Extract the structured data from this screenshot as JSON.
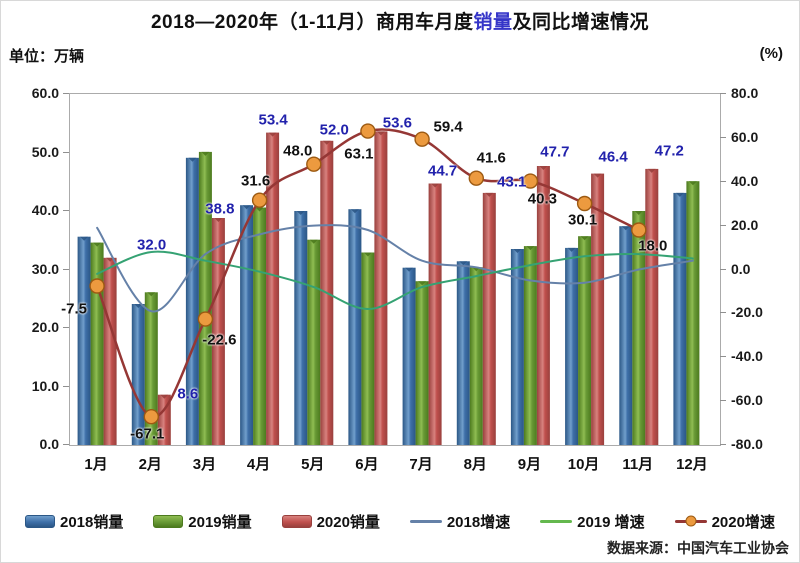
{
  "title": {
    "prefix": "2018—2020年（1-11月）商用车月度",
    "highlight": "销量",
    "suffix": "及同比增速情况",
    "highlight_color": "#3535c8"
  },
  "units": {
    "left": "单位：万辆",
    "right": "(%)"
  },
  "source": "数据来源：中国汽车工业协会",
  "legend": {
    "position": "bottom",
    "items": [
      {
        "label": "2018销量",
        "type": "bar",
        "color": "#3e6fa8"
      },
      {
        "label": "2019销量",
        "type": "bar",
        "color": "#699a36"
      },
      {
        "label": "2020销量",
        "type": "bar",
        "color": "#c0504d"
      },
      {
        "label": "2018增速",
        "type": "line",
        "color": "#6581a8"
      },
      {
        "label": "2019 增速",
        "type": "line",
        "color": "#64b84e"
      },
      {
        "label": "2020增速",
        "type": "line-marker",
        "color": "#953735",
        "marker_color": "#ec9a3f"
      }
    ]
  },
  "chart_data": {
    "type": "bar+line combo",
    "categories": [
      "1月",
      "2月",
      "3月",
      "4月",
      "5月",
      "6月",
      "7月",
      "8月",
      "9月",
      "10月",
      "11月",
      "12月"
    ],
    "left_axis": {
      "unit": "万辆",
      "min": 0,
      "max": 60,
      "step": 10,
      "tick_format": "0.0"
    },
    "right_axis": {
      "unit": "%",
      "min": -80,
      "max": 80,
      "step": 20,
      "tick_format": "0.0"
    },
    "grid": false,
    "series": [
      {
        "name": "2018销量",
        "type": "bar",
        "axis": "left",
        "color": "#3e6fa8",
        "color_dark": "#2b5786",
        "color_light": "#719fcc",
        "values": [
          35.6,
          24.1,
          49.1,
          41.0,
          40.0,
          40.3,
          30.3,
          31.4,
          33.5,
          33.7,
          37.4,
          43.1
        ]
      },
      {
        "name": "2019销量",
        "type": "bar",
        "axis": "left",
        "color": "#699a36",
        "color_dark": "#4c7a1e",
        "color_light": "#8fbd52",
        "values": [
          34.6,
          26.1,
          50.1,
          40.6,
          35.1,
          32.9,
          28.0,
          30.4,
          34.0,
          35.7,
          40.0,
          45.1
        ]
      },
      {
        "name": "2020销量",
        "type": "bar",
        "axis": "left",
        "labeled": true,
        "label_color": "#2222ac",
        "color": "#c0504d",
        "color_dark": "#99403d",
        "color_light": "#d8827f",
        "values": [
          32.0,
          8.6,
          38.8,
          53.4,
          52.0,
          53.6,
          44.7,
          43.1,
          47.7,
          46.4,
          47.2,
          null
        ]
      },
      {
        "name": "2018增速",
        "type": "line",
        "axis": "right",
        "color": "#6581a8",
        "width": 2,
        "values": [
          19,
          -19,
          7,
          16,
          20,
          18,
          4,
          1,
          -5,
          -6,
          0,
          4
        ]
      },
      {
        "name": "2019增速",
        "type": "line",
        "axis": "right",
        "color": "#35a273",
        "width": 2,
        "values": [
          -2,
          8,
          4,
          -1,
          -8,
          -18,
          -8,
          -3,
          2,
          6,
          7,
          5
        ]
      },
      {
        "name": "2020增速",
        "type": "line",
        "axis": "right",
        "labeled": true,
        "label_color": "#111111",
        "color": "#953735",
        "width": 2.5,
        "marker": true,
        "marker_color": "#ec9a3f",
        "marker_stroke": "#9c5a12",
        "values": [
          -7.5,
          -67.1,
          -22.6,
          31.6,
          48.0,
          63.1,
          59.4,
          41.6,
          40.3,
          30.1,
          18.0,
          null
        ]
      }
    ]
  }
}
